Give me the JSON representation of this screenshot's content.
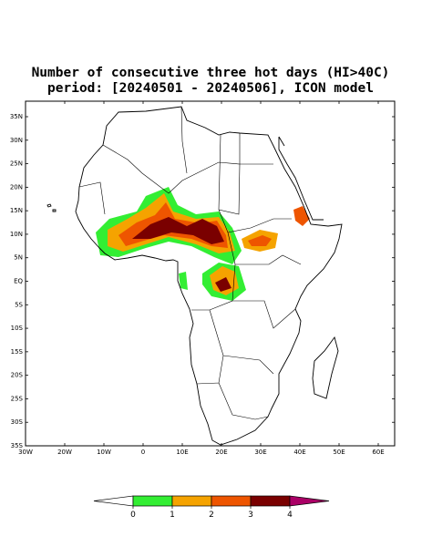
{
  "title": [
    "Number of consecutive three hot days (HI>40C)",
    "period: [20240501 - 20240506], ICON model"
  ],
  "map": {
    "lat_labels": [
      "35N",
      "30N",
      "25N",
      "20N",
      "15N",
      "10N",
      "5N",
      "EQ",
      "5S",
      "10S",
      "15S",
      "20S",
      "25S",
      "30S",
      "35S"
    ],
    "lon_labels": [
      "30W",
      "20W",
      "10W",
      "0",
      "10E",
      "20E",
      "30E",
      "40E",
      "50E",
      "60E"
    ]
  },
  "colorbar": {
    "ticks": [
      0,
      1,
      2,
      3,
      4
    ],
    "colors": [
      "#ffffff",
      "#33ee33",
      "#f5a300",
      "#ee5500",
      "#7a0000",
      "#aa0066"
    ]
  }
}
